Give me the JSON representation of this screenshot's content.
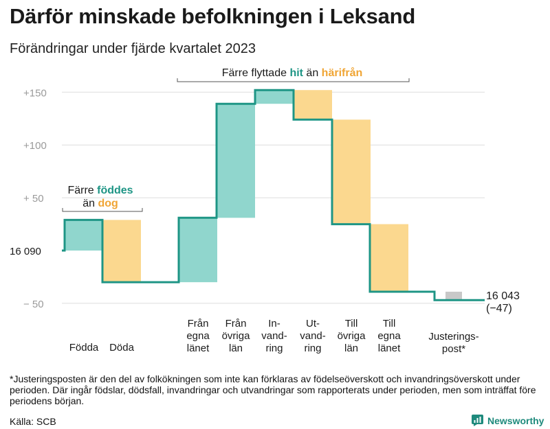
{
  "title": "Därför minskade befolkningen i Leksand",
  "subtitle": "Förändringar under fjärde kvartalet 2023",
  "footnote": "*Justeringsposten är den del av folkökningen som inte kan förklaras av födelseöverskott och invandringsöverskott under perioden. Där ingår födslar, dödsfall, invandringar och utvandringar som rapporterats under perioden, men som inträffat före periodens början.",
  "source": "Källa: SCB",
  "brand": "Newsworthy",
  "colors": {
    "teal": "#1e9585",
    "teal_fill": "#90d6cd",
    "orange": "#f0a534",
    "orange_fill": "#fbd88f",
    "gray_fill": "#c8c8c8",
    "grid": "#dedede",
    "tick": "#9a9a9a"
  },
  "chart_data": {
    "type": "waterfall",
    "title": "Därför minskade befolkningen i Leksand",
    "subtitle": "Förändringar under fjärde kvartalet 2023",
    "start_label": "16  090",
    "start_value": 0,
    "end_label_line1": "16 043",
    "end_label_line2": "(−47)",
    "ylim": [
      -65,
      170
    ],
    "yticks": [
      {
        "value": 150,
        "label": "+150"
      },
      {
        "value": 100,
        "label": "+100"
      },
      {
        "value": 50,
        "label": "+  50"
      },
      {
        "value": -50,
        "label": "−  50"
      }
    ],
    "steps": [
      {
        "lines": [
          "Födda"
        ],
        "delta": 29,
        "kind": "pos"
      },
      {
        "lines": [
          "Döda"
        ],
        "delta": -59,
        "kind": "neg"
      },
      {
        "lines": [
          "Från",
          "egna",
          "länet"
        ],
        "delta": 61,
        "kind": "pos"
      },
      {
        "lines": [
          "Från",
          "övriga",
          "län"
        ],
        "delta": 108,
        "kind": "pos"
      },
      {
        "lines": [
          "In-",
          "vand-",
          "ring"
        ],
        "delta": 13,
        "kind": "pos"
      },
      {
        "lines": [
          "Ut-",
          "vand-",
          "ring"
        ],
        "delta": -28,
        "kind": "neg"
      },
      {
        "lines": [
          "Till",
          "övriga",
          "län"
        ],
        "delta": -99,
        "kind": "neg"
      },
      {
        "lines": [
          "Till",
          "egna",
          "länet"
        ],
        "delta": -64,
        "kind": "neg"
      },
      {
        "lines": [
          "Justerings-",
          "post*"
        ],
        "delta": -8,
        "kind": "adj"
      }
    ],
    "annotation_births": {
      "line1_prefix": "Färre ",
      "line1_highlight": "föddes",
      "line2_prefix": "än ",
      "line2_highlight": "dog"
    },
    "annotation_moves": {
      "prefix": "Färre flyttade ",
      "highlight1": "hit",
      "middle": " än ",
      "highlight2": "härifrån"
    }
  }
}
